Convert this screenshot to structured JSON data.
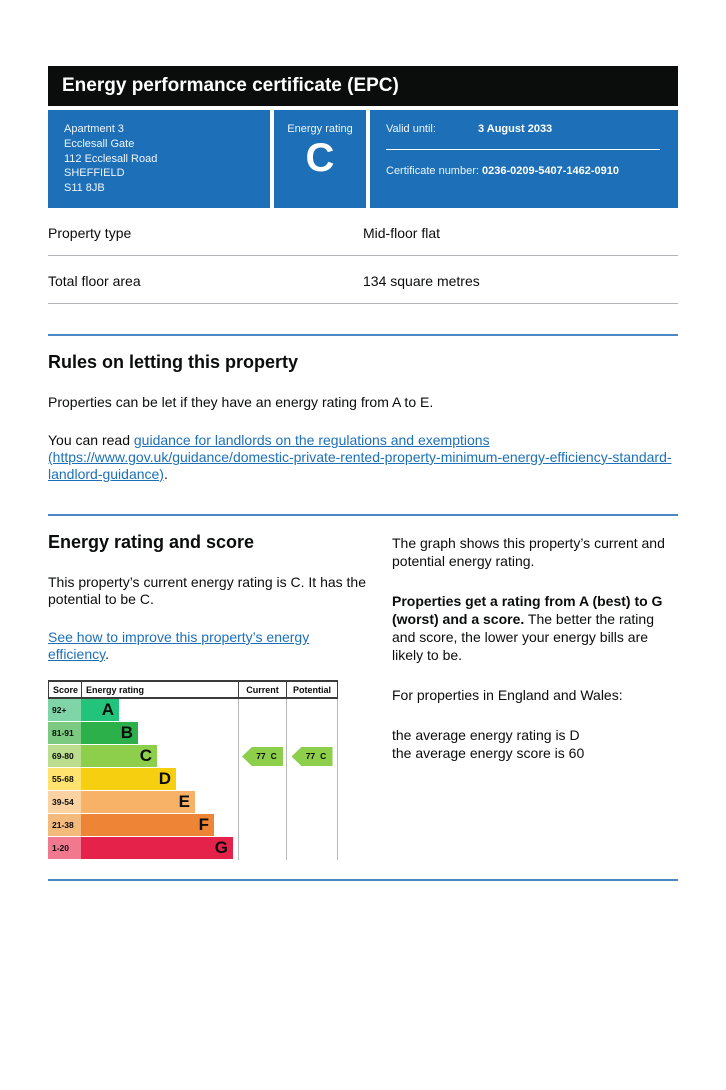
{
  "page": {
    "title_bar": "Energy performance certificate (EPC)"
  },
  "certificate": {
    "address_lines": [
      "Apartment 3",
      "Ecclesall Gate",
      "112 Ecclesall Road",
      "SHEFFIELD",
      "S11 8JB"
    ],
    "energy_rating_label": "Energy rating",
    "energy_rating": "C",
    "valid_until_label": "Valid until:",
    "valid_until": "3 August 2033",
    "certificate_number_label": "Certificate number:",
    "certificate_number": "0236-0209-5407-1462-0910"
  },
  "summary": {
    "rows": [
      {
        "label": "Property type",
        "value": "Mid-floor flat"
      },
      {
        "label": "Total floor area",
        "value": "134 square metres"
      }
    ]
  },
  "rules_section": {
    "heading": "Rules on letting this property",
    "paragraph": "Properties can be let if they have an energy rating from A to E.",
    "link_prefix": "You can read ",
    "link_label": "guidance for landlords on the regulations and exemptions",
    "link_url_text": "(https://www.gov.uk/guidance/domestic-private-rented-property-minimum-energy-efficiency-standard-landlord-guidance)",
    "link_suffix": "."
  },
  "rating_section": {
    "heading": "Energy rating and score",
    "paragraph": "This property’s current energy rating is C. It has the potential to be C.",
    "link_label": "See how to improve this property’s energy efficiency",
    "link_suffix": "."
  },
  "explainer": {
    "para1": "The graph shows this property’s current and potential energy rating.",
    "para2_bold": "Properties get a rating from A (best) to G (worst) and a score.",
    "para2_rest": " The better the rating and score, the lower your energy bills are likely to be.",
    "para3": "For properties in England and Wales:",
    "para4_line1": "the average energy rating is D",
    "para4_line2": "the average energy score is 60"
  },
  "chart_data": {
    "type": "bar",
    "title": "Energy rating and score",
    "headers": {
      "score": "Score",
      "rating": "Energy rating",
      "current": "Current",
      "potential": "Potential"
    },
    "bands": [
      {
        "letter": "A",
        "range": "92+",
        "color": "#22c37a",
        "tint": "#7fd4a8"
      },
      {
        "letter": "B",
        "range": "81-91",
        "color": "#2cb14a",
        "tint": "#7cc981"
      },
      {
        "letter": "C",
        "range": "69-80",
        "color": "#8dce4a",
        "tint": "#bade8e"
      },
      {
        "letter": "D",
        "range": "55-68",
        "color": "#f7cf11",
        "tint": "#ffe36e"
      },
      {
        "letter": "E",
        "range": "39-54",
        "color": "#f8b268",
        "tint": "#fbd3a2"
      },
      {
        "letter": "F",
        "range": "21-38",
        "color": "#ee8435",
        "tint": "#f4ba7c"
      },
      {
        "letter": "G",
        "range": "1-20",
        "color": "#e4224a",
        "tint": "#f0798f"
      }
    ],
    "current": {
      "score": 77,
      "band": "C"
    },
    "potential": {
      "score": 77,
      "band": "C"
    },
    "arrow_color": "#8dce4a",
    "layout": {
      "legend_position": "none",
      "grid": false,
      "orientation": "horizontal"
    }
  },
  "colors": {
    "brand_blue": "#1d70b8",
    "rule_blue": "#4d87c6",
    "link": "#1d70b8",
    "divider": "#b1b4b6",
    "title_bar_bg": "#0b0c0c"
  }
}
